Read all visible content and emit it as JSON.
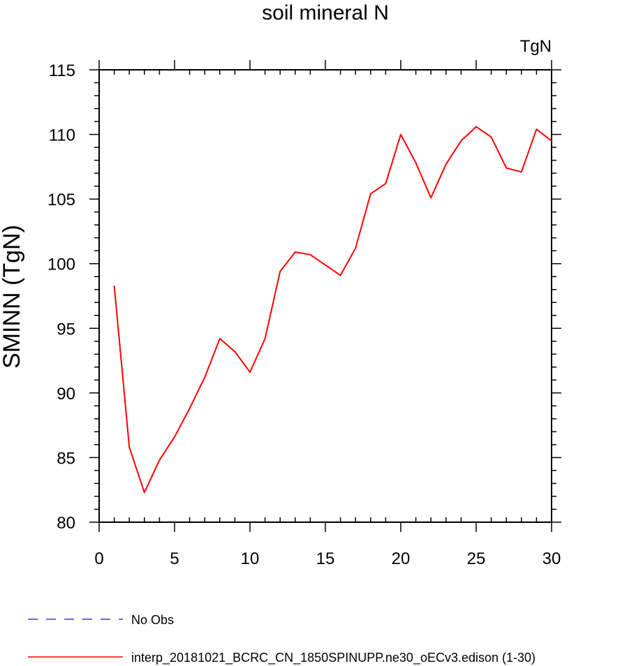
{
  "chart_data": {
    "type": "line",
    "title": "soil mineral N",
    "unit_label": "TgN",
    "ylabel": "SMINN  (TgN)",
    "xlim": [
      0,
      30
    ],
    "ylim": [
      80,
      115
    ],
    "x_ticks": [
      0,
      5,
      10,
      15,
      20,
      25,
      30
    ],
    "y_ticks": [
      80,
      85,
      90,
      95,
      100,
      105,
      110,
      115
    ],
    "grid": false,
    "legend_position": "bottom",
    "series": [
      {
        "name": "interp_20181021_BCRC_CN_1850SPINUPP.ne30_oECv3.edison (1-30)",
        "color": "#ff0000",
        "style": "solid",
        "x": [
          1,
          2,
          3,
          4,
          5,
          6,
          7,
          8,
          9,
          10,
          11,
          12,
          13,
          14,
          15,
          16,
          17,
          18,
          19,
          20,
          21,
          22,
          23,
          24,
          25,
          26,
          27,
          28,
          29,
          30
        ],
        "y": [
          98.3,
          85.8,
          82.3,
          84.8,
          86.6,
          88.8,
          91.2,
          94.2,
          93.2,
          91.6,
          94.2,
          99.4,
          100.9,
          100.7,
          99.9,
          99.1,
          101.2,
          105.4,
          106.2,
          110.0,
          107.8,
          105.1,
          107.7,
          109.5,
          110.6,
          109.8,
          107.4,
          107.1,
          110.4,
          109.5
        ]
      }
    ],
    "legend": [
      {
        "label": "No Obs",
        "color": "#3333ff",
        "style": "dashed"
      },
      {
        "label": "interp_20181021_BCRC_CN_1850SPINUPP.ne30_oECv3.edison (1-30)",
        "color": "#ff0000",
        "style": "solid"
      }
    ]
  }
}
